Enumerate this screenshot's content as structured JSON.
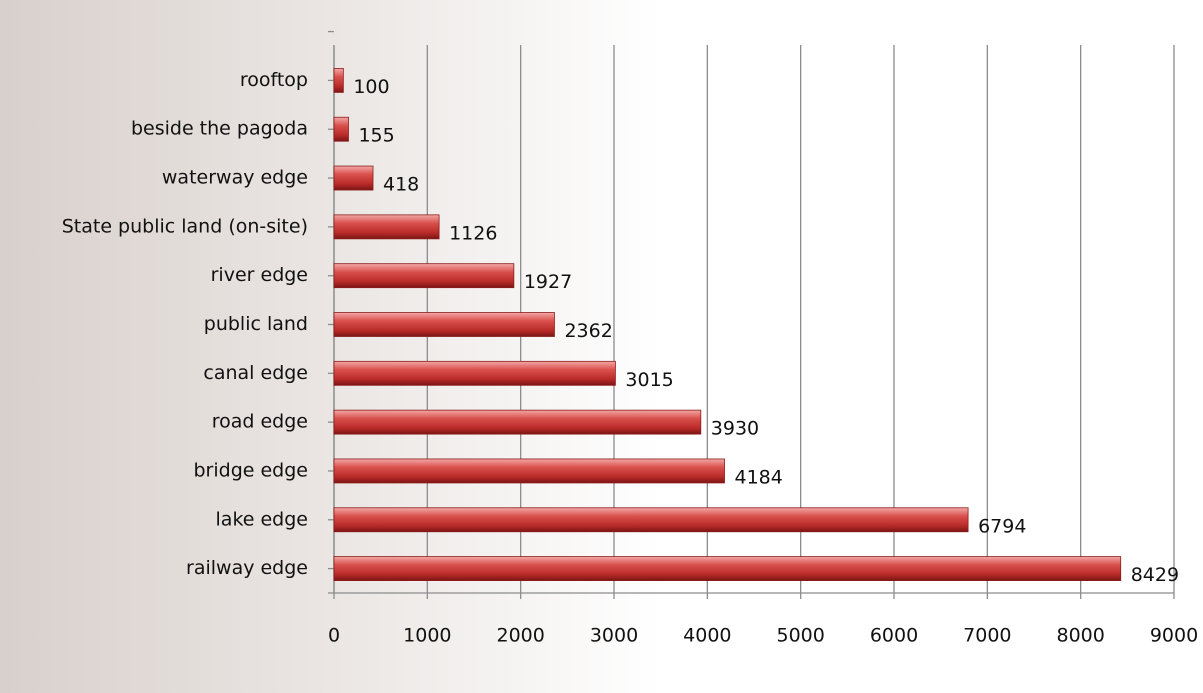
{
  "chart_data": {
    "type": "hbar",
    "categories": [
      "rooftop",
      "beside the pagoda",
      "waterway edge",
      "State public land (on-site)",
      "river edge",
      "public land",
      "canal edge",
      "road edge",
      "bridge edge",
      "lake edge",
      "railway edge"
    ],
    "values": [
      100,
      155,
      418,
      1126,
      1927,
      2362,
      3015,
      3930,
      4184,
      6794,
      8429
    ],
    "color": "#c0302f",
    "xlim": [
      0,
      9000
    ],
    "xticks": [
      0,
      1000,
      2000,
      3000,
      4000,
      5000,
      6000,
      7000,
      8000,
      9000
    ],
    "grid": true
  }
}
